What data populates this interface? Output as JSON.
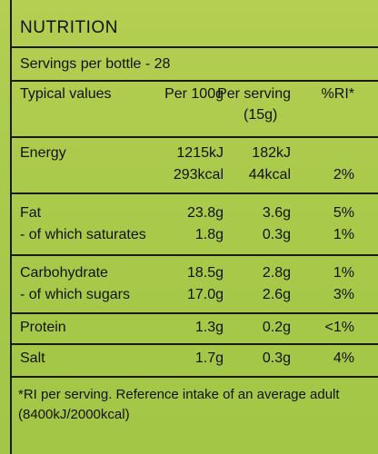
{
  "title": "NUTRITION",
  "servings": "Servings per bottle - 28",
  "header": [
    "Typical values",
    "Per 100g",
    "Per serving",
    "%RI*"
  ],
  "header_sub": "(15g)",
  "groups": [
    {
      "lines": [
        [
          "Energy",
          "1215kJ",
          "182kJ",
          null
        ],
        [
          null,
          "293kcal",
          "44kcal",
          "2%"
        ]
      ]
    },
    {
      "lines": [
        [
          "Fat",
          "23.8g",
          "3.6g",
          "5%"
        ],
        [
          "- of which saturates",
          "1.8g",
          "0.3g",
          "1%"
        ]
      ]
    },
    {
      "lines": [
        [
          "Carbohydrate",
          "18.5g",
          "2.8g",
          "1%"
        ],
        [
          "- of which sugars",
          "17.0g",
          "2.6g",
          "3%"
        ]
      ]
    },
    {
      "lines": [
        [
          "Protein",
          "1.3g",
          "0.2g",
          "<1%"
        ]
      ]
    },
    {
      "lines": [
        [
          "Salt",
          "1.7g",
          "0.3g",
          "4%"
        ]
      ]
    }
  ],
  "footnote": [
    "*RI per serving. Reference intake of an average adult",
    "(8400kJ/2000kcal)"
  ]
}
